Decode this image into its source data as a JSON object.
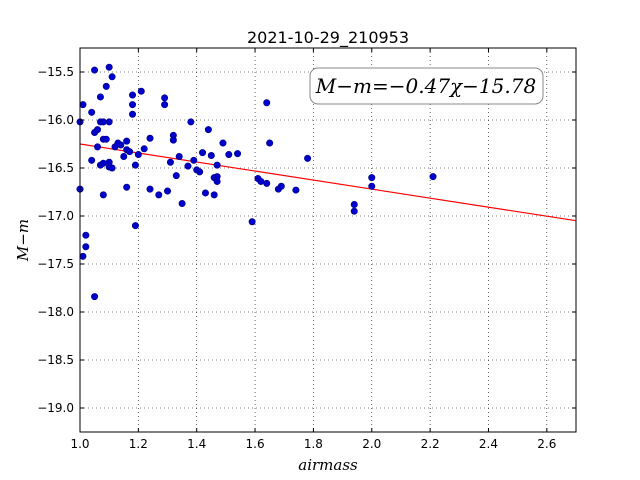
{
  "chart_data": {
    "type": "scatter",
    "title": "2021-10-29_210953",
    "xlabel": "airmass",
    "ylabel": "M−m",
    "xlim": [
      1.0,
      2.7
    ],
    "ylim": [
      -15.25,
      -19.25
    ],
    "y_inverted": true,
    "xticks": [
      "1.0",
      "1.2",
      "1.4",
      "1.6",
      "1.8",
      "2.0",
      "2.2",
      "2.4",
      "2.6"
    ],
    "xtick_values": [
      1.0,
      1.2,
      1.4,
      1.6,
      1.8,
      2.0,
      2.2,
      2.4,
      2.6
    ],
    "yticks": [
      "−15.5",
      "−16.0",
      "−16.5",
      "−17.0",
      "−17.5",
      "−18.0",
      "−18.5",
      "−19.0"
    ],
    "ytick_values": [
      -15.5,
      -16.0,
      -16.5,
      -17.0,
      -17.5,
      -18.0,
      -18.5,
      -19.0
    ],
    "grid": true,
    "annotation": "M−m=−0.47χ−15.78",
    "point_color": "#0000cc",
    "fit_color": "#ff0000",
    "fit_line": {
      "slope": -0.47,
      "intercept": -15.78
    },
    "series": [
      {
        "x": [
          1.0,
          1.0,
          1.01,
          1.01,
          1.02,
          1.02,
          1.04,
          1.04,
          1.05,
          1.05,
          1.05,
          1.06,
          1.06,
          1.07,
          1.07,
          1.07,
          1.08,
          1.08,
          1.08,
          1.08,
          1.09,
          1.09,
          1.1,
          1.1,
          1.1,
          1.1,
          1.11,
          1.11,
          1.12,
          1.13,
          1.14,
          1.15,
          1.16,
          1.16,
          1.16,
          1.17,
          1.18,
          1.18,
          1.18,
          1.19,
          1.19,
          1.2,
          1.21,
          1.22,
          1.24,
          1.24,
          1.27,
          1.29,
          1.29,
          1.3,
          1.31,
          1.32,
          1.32,
          1.33,
          1.34,
          1.35,
          1.37,
          1.38,
          1.39,
          1.4,
          1.41,
          1.42,
          1.43,
          1.44,
          1.45,
          1.46,
          1.46,
          1.47,
          1.47,
          1.47,
          1.49,
          1.51,
          1.54,
          1.59,
          1.61,
          1.62,
          1.64,
          1.64,
          1.65,
          1.68,
          1.69,
          1.74,
          1.78,
          1.94,
          1.94,
          2.0,
          2.0,
          2.21
        ],
        "y": [
          -16.02,
          -16.72,
          -15.84,
          -17.42,
          -17.2,
          -17.32,
          -16.42,
          -15.92,
          -17.84,
          -16.13,
          -15.48,
          -16.28,
          -16.1,
          -15.76,
          -16.02,
          -16.47,
          -16.2,
          -16.45,
          -16.78,
          -16.02,
          -15.65,
          -16.2,
          -15.45,
          -16.02,
          -16.49,
          -16.44,
          -15.55,
          -16.5,
          -16.28,
          -16.24,
          -16.26,
          -16.38,
          -16.22,
          -16.31,
          -16.7,
          -16.33,
          -15.74,
          -15.84,
          -15.94,
          -16.47,
          -17.1,
          -16.36,
          -15.7,
          -16.3,
          -16.72,
          -16.19,
          -16.78,
          -15.77,
          -15.84,
          -16.74,
          -16.44,
          -16.16,
          -16.21,
          -16.58,
          -16.38,
          -16.87,
          -16.48,
          -16.02,
          -16.42,
          -16.52,
          -16.54,
          -16.34,
          -16.76,
          -16.1,
          -16.37,
          -16.6,
          -16.78,
          -16.64,
          -16.47,
          -16.59,
          -16.24,
          -16.36,
          -16.35,
          -17.06,
          -16.61,
          -16.64,
          -16.66,
          -15.82,
          -16.24,
          -16.72,
          -16.69,
          -16.73,
          -16.4,
          -16.88,
          -16.95,
          -16.6,
          -16.69,
          -16.59
        ]
      }
    ]
  }
}
